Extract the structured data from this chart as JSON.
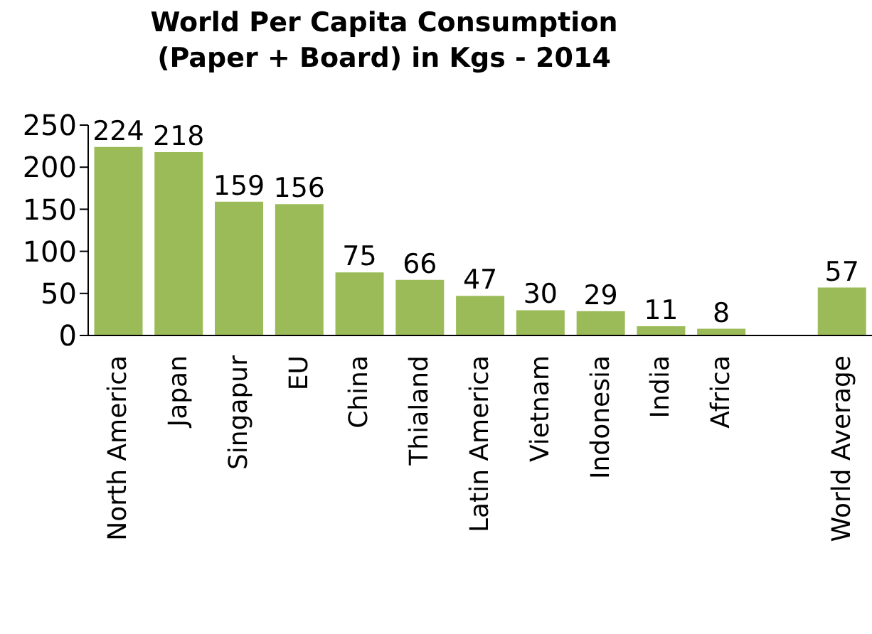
{
  "chart_data": {
    "type": "bar",
    "title": "World Per Capita Consumption (Paper + Board) in Kgs - 2014",
    "categories": [
      "North America",
      "Japan",
      "Singapur",
      "EU",
      "China",
      "Thialand",
      "Latin America",
      "Vietnam",
      "Indonesia",
      "India",
      "Africa",
      null,
      "World Average"
    ],
    "values": [
      224,
      218,
      159,
      156,
      75,
      66,
      47,
      30,
      29,
      11,
      8,
      null,
      57
    ],
    "color": "#9bbb59",
    "ylim": [
      0,
      250
    ],
    "yticks": [
      0,
      50,
      100,
      150,
      200,
      250
    ],
    "grid": false,
    "data_labels": true
  }
}
